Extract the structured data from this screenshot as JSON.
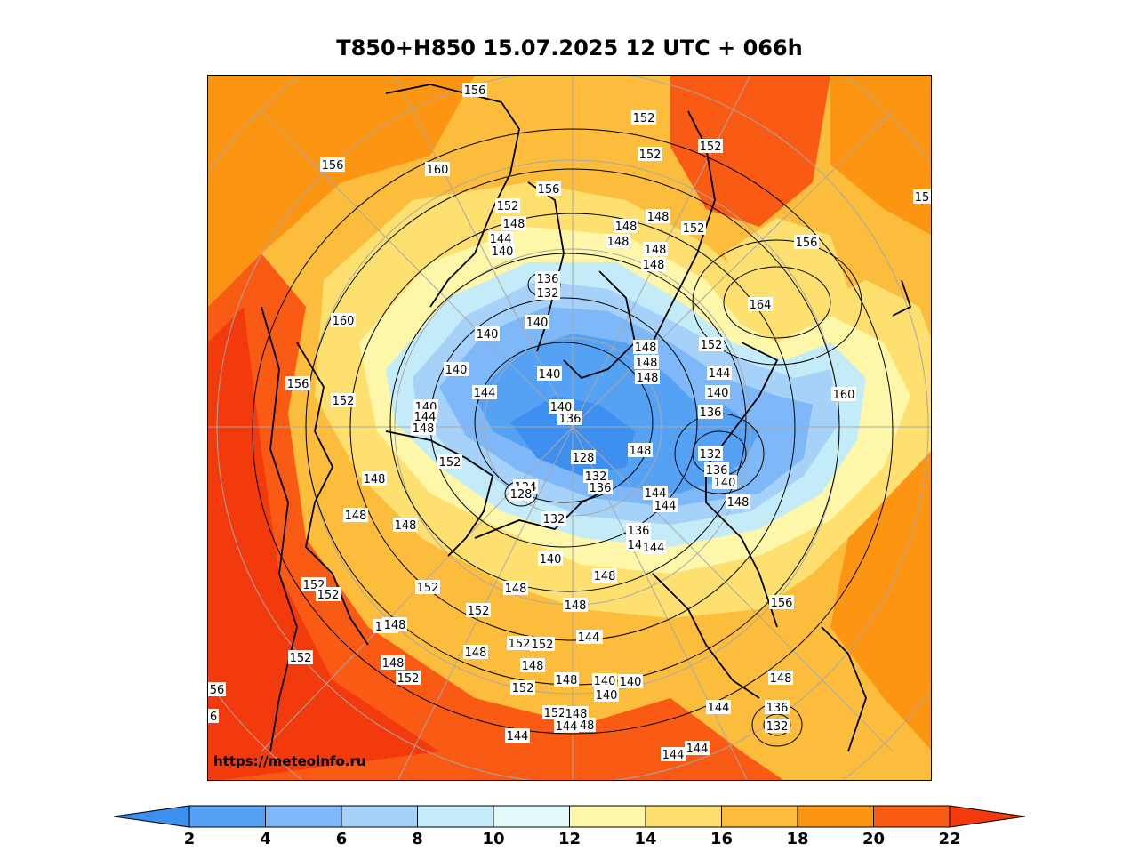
{
  "title": "T850+H850 15.07.2025 12 UTC + 066h",
  "watermark": "https://meteoinfo.ru",
  "colorbar": {
    "ticks": [
      "2",
      "4",
      "6",
      "8",
      "10",
      "12",
      "14",
      "16",
      "18",
      "20",
      "22"
    ],
    "colors": [
      "#3d8ff0",
      "#55a2f5",
      "#7eb8f8",
      "#a6d2fa",
      "#c4ecf8",
      "#e2fbfa",
      "#fef6a8",
      "#fee070",
      "#fdbd3c",
      "#fc9512",
      "#f95a14",
      "#f23a0c"
    ]
  },
  "colors": {
    "contour": "#000000",
    "grid": "#a8a8a8",
    "coast": "#000000"
  },
  "contour_labels": [
    {
      "text": "156"
    },
    {
      "text": "152"
    },
    {
      "text": "152"
    },
    {
      "text": "152"
    },
    {
      "text": "156"
    },
    {
      "text": "160"
    },
    {
      "text": "156"
    },
    {
      "text": "15"
    },
    {
      "text": "152"
    },
    {
      "text": "148"
    },
    {
      "text": "144"
    },
    {
      "text": "140"
    },
    {
      "text": "148"
    },
    {
      "text": "148"
    },
    {
      "text": "148"
    },
    {
      "text": "152"
    },
    {
      "text": "148"
    },
    {
      "text": "148"
    },
    {
      "text": "156"
    },
    {
      "text": "136"
    },
    {
      "text": "132"
    },
    {
      "text": "164"
    },
    {
      "text": "160"
    },
    {
      "text": "140"
    },
    {
      "text": "140"
    },
    {
      "text": "148"
    },
    {
      "text": "152"
    },
    {
      "text": "140"
    },
    {
      "text": "140"
    },
    {
      "text": "148"
    },
    {
      "text": "156"
    },
    {
      "text": "144"
    },
    {
      "text": "148"
    },
    {
      "text": "144"
    },
    {
      "text": "152"
    },
    {
      "text": "140"
    },
    {
      "text": "140"
    },
    {
      "text": "160"
    },
    {
      "text": "140"
    },
    {
      "text": "136"
    },
    {
      "text": "136"
    },
    {
      "text": "144"
    },
    {
      "text": "148"
    },
    {
      "text": "148"
    },
    {
      "text": "128"
    },
    {
      "text": "148"
    },
    {
      "text": "132"
    },
    {
      "text": "152"
    },
    {
      "text": "136"
    },
    {
      "text": "132"
    },
    {
      "text": "124"
    },
    {
      "text": "128"
    },
    {
      "text": "136"
    },
    {
      "text": "140"
    },
    {
      "text": "144"
    },
    {
      "text": "144"
    },
    {
      "text": "148"
    },
    {
      "text": "148"
    },
    {
      "text": "132"
    },
    {
      "text": "136"
    },
    {
      "text": "148"
    },
    {
      "text": "144"
    },
    {
      "text": "144"
    },
    {
      "text": "140"
    },
    {
      "text": "148"
    },
    {
      "text": "152"
    },
    {
      "text": "152"
    },
    {
      "text": "148"
    },
    {
      "text": "148"
    },
    {
      "text": "152"
    },
    {
      "text": "148"
    },
    {
      "text": "144"
    },
    {
      "text": "156"
    },
    {
      "text": "148"
    },
    {
      "text": "152"
    },
    {
      "text": "152"
    },
    {
      "text": "152"
    },
    {
      "text": "144"
    },
    {
      "text": "148"
    },
    {
      "text": "152"
    },
    {
      "text": "148"
    },
    {
      "text": "148"
    },
    {
      "text": "148"
    },
    {
      "text": "152"
    },
    {
      "text": "148"
    },
    {
      "text": "144"
    },
    {
      "text": "140"
    },
    {
      "text": "140"
    },
    {
      "text": "152"
    },
    {
      "text": "148"
    },
    {
      "text": "148"
    },
    {
      "text": "144"
    },
    {
      "text": "140"
    },
    {
      "text": "136"
    },
    {
      "text": "132"
    },
    {
      "text": "144"
    },
    {
      "text": "144"
    },
    {
      "text": "144"
    },
    {
      "text": "56"
    },
    {
      "text": "6"
    },
    {
      "text": "152"
    }
  ]
}
